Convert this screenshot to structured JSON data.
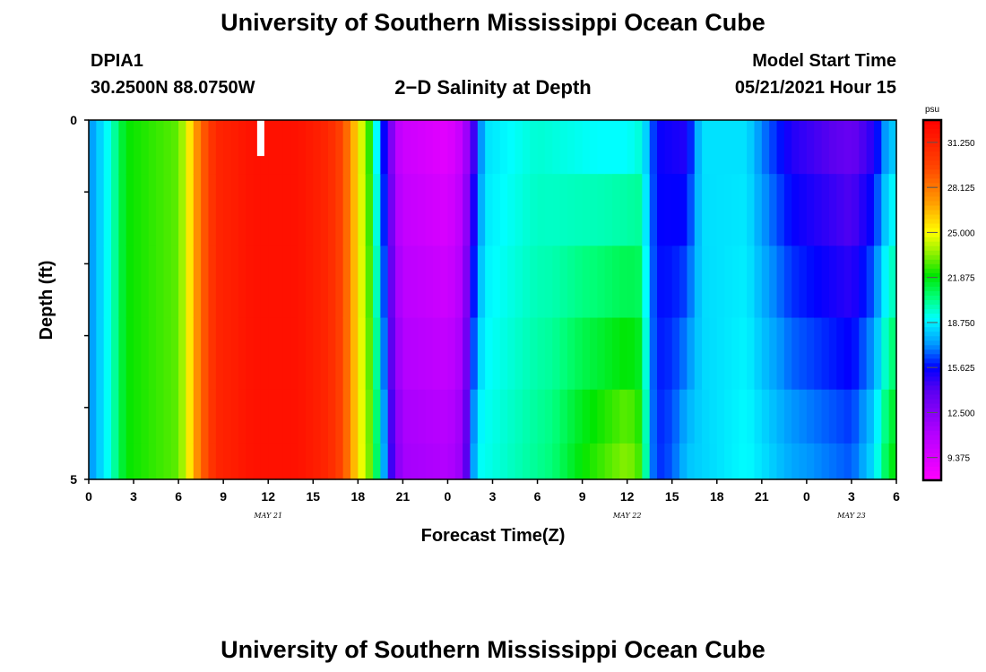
{
  "header": {
    "title_top": "University of Southern Mississippi Ocean Cube",
    "title_bottom": "University of Southern Mississippi Ocean Cube",
    "station_id": "DPIA1",
    "coords": "30.2500N  88.0750W",
    "plot_title": "2−D Salinity at Depth",
    "model_label": "Model Start Time",
    "model_time": "05/21/2021 Hour 15"
  },
  "chart_data": {
    "type": "heatmap",
    "title": "2−D Salinity at Depth",
    "xlabel": "Forecast Time(Z)",
    "ylabel": "Depth (ft)",
    "x_tick_labels": [
      "0",
      "3",
      "6",
      "9",
      "12",
      "15",
      "18",
      "21",
      "0",
      "3",
      "6",
      "9",
      "12",
      "15",
      "18",
      "21",
      "0",
      "3",
      "6"
    ],
    "x_date_labels": [
      {
        "label": "MAY 21",
        "hour_offset": 12
      },
      {
        "label": "MAY 22",
        "hour_offset": 36
      },
      {
        "label": "MAY 23",
        "hour_offset": 51
      }
    ],
    "x_range_hours": [
      0,
      54
    ],
    "y_range_ft": [
      0,
      5
    ],
    "y_tick_labels": [
      "0",
      "5"
    ],
    "depth_levels_ft": [
      0.25,
      1.25,
      2.25,
      3.25,
      4.25,
      4.75
    ],
    "colorbar": {
      "unit": "psu",
      "labels": [
        "31.250",
        "28.125",
        "25.000",
        "21.875",
        "18.750",
        "15.625",
        "12.500",
        "9.375"
      ],
      "range": [
        7.8,
        32.8
      ]
    },
    "salinity_profile_surface": [
      [
        0,
        17.0
      ],
      [
        1.5,
        19.5
      ],
      [
        2.5,
        22.0
      ],
      [
        6,
        23.0
      ],
      [
        6.5,
        24.5
      ],
      [
        7,
        26.5
      ],
      [
        7.5,
        28.5
      ],
      [
        8.5,
        31.0
      ],
      [
        11,
        32.0
      ],
      [
        14,
        32.0
      ],
      [
        16,
        31.0
      ],
      [
        17,
        29.5
      ],
      [
        17.5,
        27.5
      ],
      [
        18,
        25.5
      ],
      [
        18.5,
        23.5
      ],
      [
        19,
        21.5
      ],
      [
        19.5,
        16.5
      ],
      [
        20,
        14.5
      ],
      [
        20.5,
        11.0
      ],
      [
        21,
        10.0
      ],
      [
        24,
        9.0
      ],
      [
        25,
        10.5
      ],
      [
        25.5,
        13.0
      ],
      [
        26,
        16.0
      ],
      [
        26.5,
        18.5
      ],
      [
        30,
        19.5
      ],
      [
        34,
        19.0
      ],
      [
        36,
        19.0
      ],
      [
        37,
        19.5
      ],
      [
        37.5,
        17.0
      ],
      [
        38,
        15.5
      ],
      [
        40,
        15.0
      ],
      [
        40.5,
        17.0
      ],
      [
        41,
        18.5
      ],
      [
        44,
        18.5
      ],
      [
        45,
        17.0
      ],
      [
        47,
        15.0
      ],
      [
        51,
        13.5
      ],
      [
        52.5,
        15.0
      ],
      [
        53.5,
        18.0
      ],
      [
        54,
        18.0
      ]
    ],
    "salinity_profile_bottom": [
      [
        0,
        17.0
      ],
      [
        1.5,
        19.5
      ],
      [
        2.5,
        22.0
      ],
      [
        6,
        23.0
      ],
      [
        6.5,
        24.5
      ],
      [
        7,
        26.5
      ],
      [
        7.5,
        28.5
      ],
      [
        8.5,
        31.0
      ],
      [
        11,
        32.0
      ],
      [
        14,
        32.0
      ],
      [
        16,
        31.0
      ],
      [
        17,
        29.5
      ],
      [
        17.5,
        27.5
      ],
      [
        18,
        25.5
      ],
      [
        18.5,
        24.0
      ],
      [
        19,
        22.5
      ],
      [
        19.5,
        19.0
      ],
      [
        20,
        16.0
      ],
      [
        20.5,
        13.0
      ],
      [
        21,
        11.5
      ],
      [
        24,
        11.0
      ],
      [
        25,
        12.0
      ],
      [
        25.5,
        16.0
      ],
      [
        26,
        19.0
      ],
      [
        31,
        20.5
      ],
      [
        33,
        22.0
      ],
      [
        36,
        23.5
      ],
      [
        37,
        22.5
      ],
      [
        37.5,
        17.5
      ],
      [
        38,
        16.0
      ],
      [
        39,
        16.5
      ],
      [
        40,
        18.0
      ],
      [
        44,
        19.0
      ],
      [
        47,
        17.5
      ],
      [
        51,
        16.5
      ],
      [
        52.5,
        18.5
      ],
      [
        53.5,
        21.5
      ],
      [
        54,
        22.0
      ]
    ],
    "missing_data_marker": {
      "hour": 11.5,
      "depth_range_ft": [
        0,
        0.5
      ]
    }
  }
}
